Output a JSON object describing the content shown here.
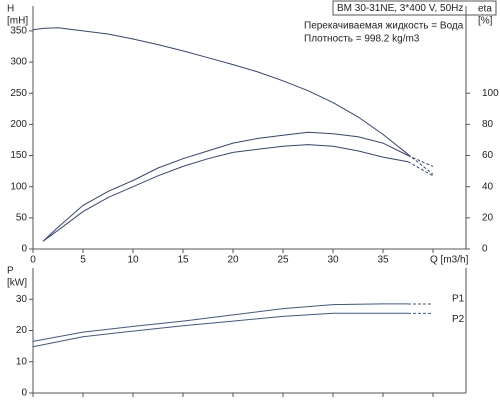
{
  "chart_data": [
    {
      "type": "line",
      "y_label": [
        "H",
        "[mH]"
      ],
      "y2_label": [
        "eta",
        "[%]"
      ],
      "annotations": [
        "BM 30-31NE, 3*400 V, 50Hz",
        "Перекачиваемая жидкость = Вода",
        "Плотность = 998.2 kg/m3"
      ],
      "x": [
        0,
        1,
        2.5,
        5,
        7.5,
        10,
        12.5,
        15,
        17.5,
        20,
        22.5,
        25,
        27.5,
        30,
        32.5,
        35,
        37.5,
        40
      ],
      "xlim": [
        0,
        43.3
      ],
      "xticks": [
        0,
        5,
        10,
        15,
        20,
        25,
        30,
        35,
        {
          "value": 40,
          "label": "Q [m3/h]"
        }
      ],
      "ylim": [
        0,
        390
      ],
      "yticks": [
        0,
        50,
        100,
        150,
        200,
        250,
        300,
        350
      ],
      "y2lim": [
        0,
        156
      ],
      "y2ticks": [
        0,
        20,
        40,
        60,
        80,
        100
      ],
      "grid": false,
      "dashed_last": true,
      "series": [
        {
          "color": "#33457a",
          "values": [
            352,
            354,
            355,
            350,
            345,
            337,
            328,
            318,
            307,
            296,
            284,
            270,
            254,
            235,
            212,
            184,
            152,
            120
          ]
        },
        {
          "color": "#33457a",
          "axis": "y2",
          "values": [
            null,
            5,
            14,
            28,
            37,
            44,
            52,
            58,
            63,
            68,
            71,
            73,
            75,
            74,
            72,
            68,
            60,
            53
          ]
        },
        {
          "color": "#33457a",
          "axis": "y2",
          "values": [
            null,
            5,
            12,
            24,
            33,
            40,
            47,
            53,
            58,
            62,
            64,
            66,
            67,
            66,
            63,
            59,
            56,
            47
          ]
        }
      ]
    },
    {
      "type": "line",
      "y_label": [
        "P",
        "[kW]"
      ],
      "x": [
        0,
        5,
        10,
        15,
        20,
        25,
        30,
        35,
        37.5,
        40
      ],
      "xlim": [
        0,
        43.3
      ],
      "xticks": [
        0,
        5,
        10,
        15,
        20,
        25,
        30,
        35,
        40
      ],
      "ylim": [
        0,
        40
      ],
      "yticks": [
        0,
        10,
        20,
        30
      ],
      "grid": false,
      "dashed_last": true,
      "series": [
        {
          "name": "P1",
          "color": "#3a5a8c",
          "values": [
            16.5,
            19.5,
            21.3,
            23,
            25,
            27,
            28.3,
            28.5,
            28.5,
            28.5
          ]
        },
        {
          "name": "P2",
          "color": "#3a5a8c",
          "values": [
            14.8,
            18,
            19.8,
            21.5,
            23,
            24.5,
            25.5,
            25.5,
            25.5,
            25.5
          ]
        }
      ]
    }
  ]
}
